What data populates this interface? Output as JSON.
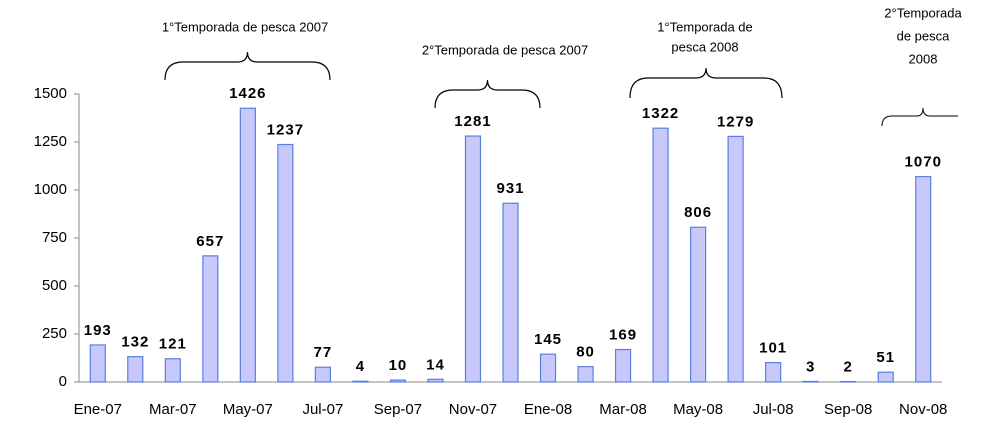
{
  "chart_data": {
    "type": "bar",
    "categories": [
      "Ene-07",
      null,
      "Mar-07",
      null,
      "May-07",
      null,
      "Jul-07",
      null,
      "Sep-07",
      null,
      "Nov-07",
      null,
      "Ene-08",
      null,
      "Mar-08",
      null,
      "May-08",
      null,
      "Jul-08",
      null,
      "Sep-08",
      null,
      "Nov-08"
    ],
    "values": [
      193,
      132,
      121,
      657,
      1426,
      1237,
      77,
      4,
      10,
      14,
      1281,
      931,
      145,
      80,
      169,
      1322,
      806,
      1279,
      101,
      3,
      2,
      51,
      1070
    ],
    "color": "#c8c8fa",
    "ylim": [
      0,
      1500
    ],
    "yticks": [
      0,
      250,
      500,
      750,
      1000,
      1250,
      1500
    ],
    "annotations": [
      {
        "lines": [
          "1°Temporada de pesca 2007"
        ]
      },
      {
        "lines": [
          "2°Temporada de pesca 2007"
        ]
      },
      {
        "lines": [
          "1°Temporada de",
          "pesca 2008"
        ]
      },
      {
        "lines": [
          "2°Temporada",
          "de pesca",
          "2008"
        ]
      }
    ]
  }
}
